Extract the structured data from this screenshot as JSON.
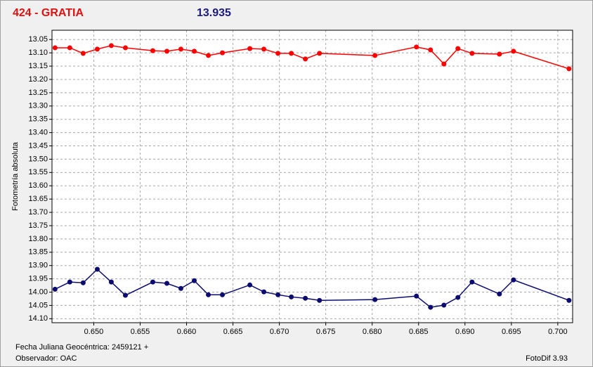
{
  "chart_data": {
    "type": "line",
    "title": "424 - GRATIA",
    "subtitle": "13.935",
    "ylabel": "Fotometría absoluta",
    "xlabel": "Fecha Juliana Geocéntrica: 2459121 +",
    "observer": "Observador: OAC",
    "software": "FotoDif 3.93",
    "grid": true,
    "xlim": [
      0.6455,
      0.7016
    ],
    "ylim": [
      14.115,
      13.015
    ],
    "xticks": [
      {
        "value": 0.65,
        "label": "0.650"
      },
      {
        "value": 0.655,
        "label": "0.655"
      },
      {
        "value": 0.66,
        "label": "0.660"
      },
      {
        "value": 0.665,
        "label": "0.665"
      },
      {
        "value": 0.67,
        "label": "0.670"
      },
      {
        "value": 0.675,
        "label": "0.675"
      },
      {
        "value": 0.68,
        "label": "0.680"
      },
      {
        "value": 0.685,
        "label": "0.685"
      },
      {
        "value": 0.69,
        "label": "0.690"
      },
      {
        "value": 0.695,
        "label": "0.695"
      },
      {
        "value": 0.7,
        "label": "0.700"
      }
    ],
    "yticks": [
      {
        "value": 13.05,
        "label": "13.05"
      },
      {
        "value": 13.1,
        "label": "13.10"
      },
      {
        "value": 13.15,
        "label": "13.15"
      },
      {
        "value": 13.2,
        "label": "13.20"
      },
      {
        "value": 13.25,
        "label": "13.25"
      },
      {
        "value": 13.3,
        "label": "13.30"
      },
      {
        "value": 13.35,
        "label": "13.35"
      },
      {
        "value": 13.4,
        "label": "13.40"
      },
      {
        "value": 13.45,
        "label": "13.45"
      },
      {
        "value": 13.5,
        "label": "13.50"
      },
      {
        "value": 13.55,
        "label": "13.55"
      },
      {
        "value": 13.6,
        "label": "13.60"
      },
      {
        "value": 13.65,
        "label": "13.65"
      },
      {
        "value": 13.7,
        "label": "13.70"
      },
      {
        "value": 13.75,
        "label": "13.75"
      },
      {
        "value": 13.8,
        "label": "13.80"
      },
      {
        "value": 13.85,
        "label": "13.85"
      },
      {
        "value": 13.9,
        "label": "13.90"
      },
      {
        "value": 13.95,
        "label": "13.95"
      },
      {
        "value": 14.0,
        "label": "14.00"
      },
      {
        "value": 14.05,
        "label": "14.05"
      },
      {
        "value": 14.1,
        "label": "14.10"
      }
    ],
    "x": [
      0.64583,
      0.64742,
      0.64886,
      0.65038,
      0.65189,
      0.65341,
      0.65636,
      0.65788,
      0.65939,
      0.66083,
      0.66235,
      0.66386,
      0.66682,
      0.66833,
      0.66985,
      0.67129,
      0.6728,
      0.67432,
      0.6803,
      0.68477,
      0.68629,
      0.68773,
      0.68924,
      0.69076,
      0.69371,
      0.69523,
      0.70121
    ],
    "series": [
      {
        "color": "#ff0000",
        "values": [
          13.081,
          13.081,
          13.102,
          13.086,
          13.073,
          13.081,
          13.092,
          13.094,
          13.086,
          13.094,
          13.11,
          13.1,
          13.084,
          13.086,
          13.102,
          13.102,
          13.123,
          13.102,
          13.11,
          13.078,
          13.089,
          13.142,
          13.084,
          13.102,
          13.105,
          13.094,
          13.16
        ]
      },
      {
        "color": "#0c0c70",
        "values": [
          13.989,
          13.962,
          13.965,
          13.914,
          13.962,
          14.012,
          13.962,
          13.967,
          13.986,
          13.957,
          14.01,
          14.01,
          13.973,
          13.999,
          14.01,
          14.018,
          14.023,
          14.031,
          14.028,
          14.015,
          14.057,
          14.049,
          14.02,
          13.962,
          14.007,
          13.954,
          14.031
        ]
      }
    ]
  }
}
